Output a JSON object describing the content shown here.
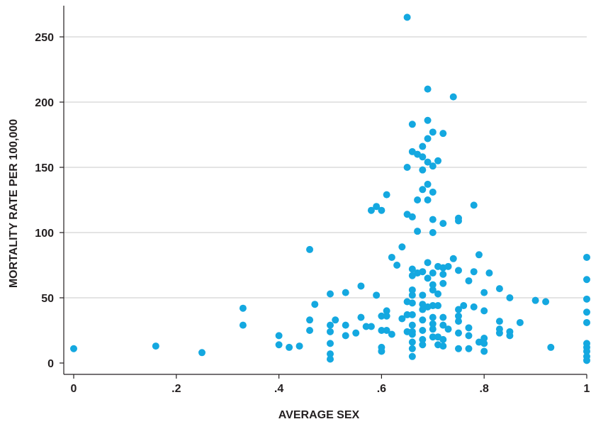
{
  "chart_data": {
    "type": "scatter",
    "xlabel": "AVERAGE SEX",
    "ylabel": "MORTALITY RATE PER 100,000",
    "xlim": [
      0,
      1
    ],
    "ylim": [
      0,
      270
    ],
    "x_ticks": [
      0,
      0.2,
      0.4,
      0.6,
      0.8,
      1
    ],
    "x_tick_labels": [
      "0",
      ".2",
      ".4",
      ".6",
      ".8",
      "1"
    ],
    "y_ticks": [
      0,
      50,
      100,
      150,
      200,
      250
    ],
    "y_tick_labels": [
      "0",
      "50",
      "100",
      "150",
      "200",
      "250"
    ],
    "grid": "horizontal",
    "colors": {
      "points": "#14a8e0",
      "grid": "#c8c8c8",
      "axis": "#231f20"
    },
    "points": [
      [
        0.0,
        11
      ],
      [
        0.16,
        13
      ],
      [
        0.25,
        8
      ],
      [
        0.33,
        42
      ],
      [
        0.33,
        29
      ],
      [
        0.4,
        21
      ],
      [
        0.4,
        14
      ],
      [
        0.42,
        12
      ],
      [
        0.44,
        13
      ],
      [
        0.46,
        87
      ],
      [
        0.46,
        33
      ],
      [
        0.46,
        25
      ],
      [
        0.47,
        45
      ],
      [
        0.5,
        53
      ],
      [
        0.5,
        29
      ],
      [
        0.5,
        24
      ],
      [
        0.5,
        15
      ],
      [
        0.5,
        7
      ],
      [
        0.5,
        3
      ],
      [
        0.51,
        33
      ],
      [
        0.53,
        54
      ],
      [
        0.53,
        29
      ],
      [
        0.53,
        21
      ],
      [
        0.55,
        23
      ],
      [
        0.56,
        59
      ],
      [
        0.56,
        35
      ],
      [
        0.57,
        28
      ],
      [
        0.58,
        117
      ],
      [
        0.58,
        28
      ],
      [
        0.59,
        120
      ],
      [
        0.59,
        52
      ],
      [
        0.6,
        117
      ],
      [
        0.6,
        36
      ],
      [
        0.6,
        25
      ],
      [
        0.6,
        12
      ],
      [
        0.6,
        9
      ],
      [
        0.61,
        129
      ],
      [
        0.61,
        40
      ],
      [
        0.61,
        36
      ],
      [
        0.61,
        25
      ],
      [
        0.62,
        81
      ],
      [
        0.62,
        22
      ],
      [
        0.63,
        75
      ],
      [
        0.64,
        89
      ],
      [
        0.64,
        34
      ],
      [
        0.65,
        265
      ],
      [
        0.65,
        150
      ],
      [
        0.65,
        114
      ],
      [
        0.65,
        47
      ],
      [
        0.65,
        37
      ],
      [
        0.65,
        24
      ],
      [
        0.66,
        183
      ],
      [
        0.66,
        162
      ],
      [
        0.66,
        112
      ],
      [
        0.66,
        72
      ],
      [
        0.66,
        67
      ],
      [
        0.66,
        56
      ],
      [
        0.66,
        52
      ],
      [
        0.66,
        46
      ],
      [
        0.66,
        37
      ],
      [
        0.66,
        29
      ],
      [
        0.66,
        24
      ],
      [
        0.66,
        22
      ],
      [
        0.66,
        16
      ],
      [
        0.66,
        11
      ],
      [
        0.66,
        5
      ],
      [
        0.67,
        160
      ],
      [
        0.67,
        125
      ],
      [
        0.67,
        101
      ],
      [
        0.67,
        69
      ],
      [
        0.68,
        158
      ],
      [
        0.68,
        148
      ],
      [
        0.68,
        133
      ],
      [
        0.68,
        70
      ],
      [
        0.68,
        52
      ],
      [
        0.68,
        45
      ],
      [
        0.68,
        41
      ],
      [
        0.68,
        33
      ],
      [
        0.68,
        25
      ],
      [
        0.68,
        18
      ],
      [
        0.68,
        14
      ],
      [
        0.68,
        166
      ],
      [
        0.69,
        186
      ],
      [
        0.69,
        154
      ],
      [
        0.69,
        125
      ],
      [
        0.69,
        77
      ],
      [
        0.69,
        65
      ],
      [
        0.69,
        43
      ],
      [
        0.69,
        210
      ],
      [
        0.69,
        172
      ],
      [
        0.69,
        137
      ],
      [
        0.7,
        177
      ],
      [
        0.7,
        151
      ],
      [
        0.7,
        131
      ],
      [
        0.7,
        110
      ],
      [
        0.7,
        100
      ],
      [
        0.7,
        69
      ],
      [
        0.7,
        60
      ],
      [
        0.7,
        56
      ],
      [
        0.7,
        44
      ],
      [
        0.7,
        35
      ],
      [
        0.7,
        30
      ],
      [
        0.7,
        26
      ],
      [
        0.7,
        20
      ],
      [
        0.71,
        155
      ],
      [
        0.71,
        74
      ],
      [
        0.71,
        53
      ],
      [
        0.71,
        44
      ],
      [
        0.71,
        20
      ],
      [
        0.71,
        14
      ],
      [
        0.72,
        176
      ],
      [
        0.72,
        107
      ],
      [
        0.72,
        73
      ],
      [
        0.72,
        68
      ],
      [
        0.72,
        61
      ],
      [
        0.72,
        35
      ],
      [
        0.72,
        29
      ],
      [
        0.72,
        18
      ],
      [
        0.72,
        13
      ],
      [
        0.73,
        74
      ],
      [
        0.73,
        26
      ],
      [
        0.74,
        204
      ],
      [
        0.74,
        80
      ],
      [
        0.75,
        111
      ],
      [
        0.75,
        109
      ],
      [
        0.75,
        71
      ],
      [
        0.75,
        41
      ],
      [
        0.75,
        36
      ],
      [
        0.75,
        32
      ],
      [
        0.75,
        23
      ],
      [
        0.75,
        11
      ],
      [
        0.76,
        44
      ],
      [
        0.77,
        63
      ],
      [
        0.77,
        27
      ],
      [
        0.77,
        21
      ],
      [
        0.77,
        11
      ],
      [
        0.78,
        121
      ],
      [
        0.78,
        70
      ],
      [
        0.78,
        43
      ],
      [
        0.79,
        83
      ],
      [
        0.79,
        16
      ],
      [
        0.8,
        54
      ],
      [
        0.8,
        40
      ],
      [
        0.8,
        19
      ],
      [
        0.8,
        15
      ],
      [
        0.8,
        9
      ],
      [
        0.81,
        69
      ],
      [
        0.83,
        57
      ],
      [
        0.83,
        32
      ],
      [
        0.83,
        26
      ],
      [
        0.83,
        23
      ],
      [
        0.85,
        50
      ],
      [
        0.85,
        24
      ],
      [
        0.85,
        21
      ],
      [
        0.87,
        31
      ],
      [
        0.9,
        48
      ],
      [
        0.92,
        47
      ],
      [
        0.93,
        12
      ],
      [
        1.0,
        81
      ],
      [
        1.0,
        64
      ],
      [
        1.0,
        49
      ],
      [
        1.0,
        39
      ],
      [
        1.0,
        31
      ],
      [
        1.0,
        15
      ],
      [
        1.0,
        12
      ],
      [
        1.0,
        9
      ],
      [
        1.0,
        5
      ],
      [
        1.0,
        2
      ]
    ]
  }
}
